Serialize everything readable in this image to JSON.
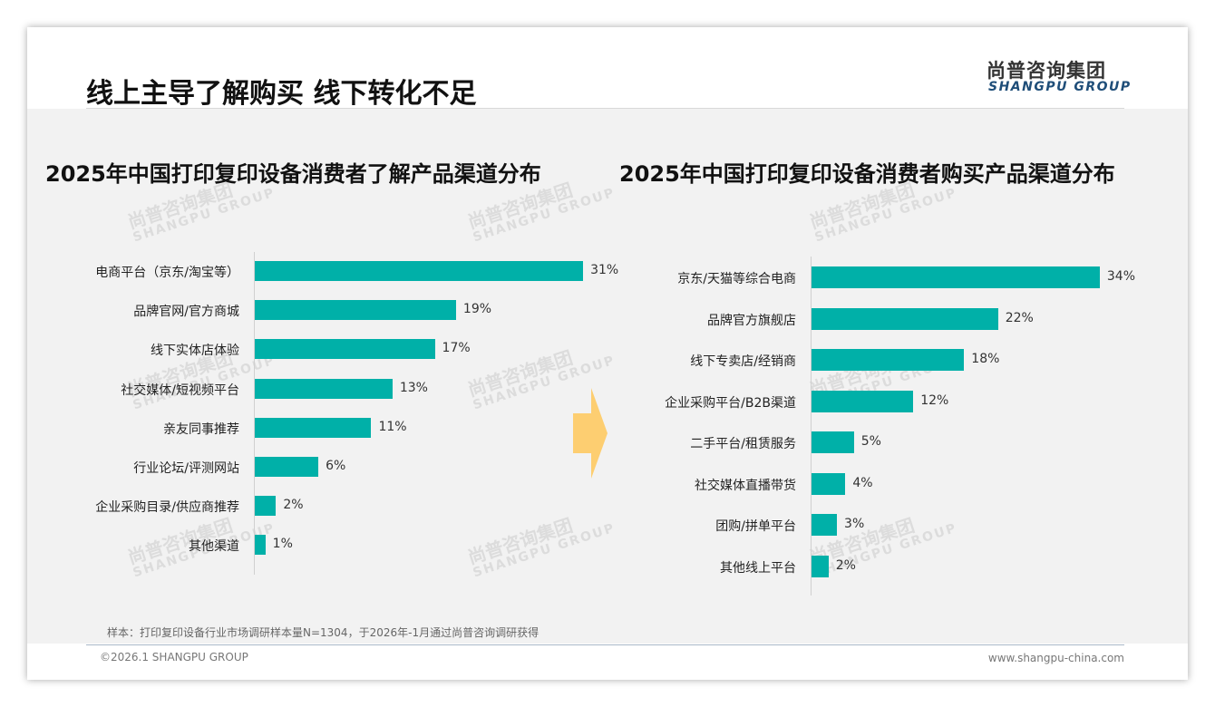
{
  "header": {
    "title": "线上主导了解购买 线下转化不足",
    "logo_cn": "尚普咨询集团",
    "logo_en": "SHANGPU GROUP"
  },
  "watermark": {
    "cn": "尚普咨询集团",
    "en": "SHANGPU GROUP"
  },
  "chart_data": [
    {
      "type": "bar",
      "orientation": "horizontal",
      "title": "2025年中国打印复印设备消费者了解产品渠道分布",
      "categories": [
        "电商平台（京东/淘宝等）",
        "品牌官网/官方商城",
        "线下实体店体验",
        "社交媒体/短视频平台",
        "亲友同事推荐",
        "行业论坛/评测网站",
        "企业采购目录/供应商推荐",
        "其他渠道"
      ],
      "values": [
        31,
        19,
        17,
        13,
        11,
        6,
        2,
        1
      ],
      "labels": [
        "31%",
        "19%",
        "17%",
        "13%",
        "11%",
        "6%",
        "2%",
        "1%"
      ],
      "unit": "%",
      "color": "#00b0a8"
    },
    {
      "type": "bar",
      "orientation": "horizontal",
      "title": "2025年中国打印复印设备消费者购买产品渠道分布",
      "categories": [
        "京东/天猫等综合电商",
        "品牌官方旗舰店",
        "线下专卖店/经销商",
        "企业采购平台/B2B渠道",
        "二手平台/租赁服务",
        "社交媒体直播带货",
        "团购/拼单平台",
        "其他线上平台"
      ],
      "values": [
        34,
        22,
        18,
        12,
        5,
        4,
        3,
        2
      ],
      "labels": [
        "34%",
        "22%",
        "18%",
        "12%",
        "5%",
        "4%",
        "3%",
        "2%"
      ],
      "unit": "%",
      "color": "#00b0a8"
    }
  ],
  "footer": {
    "note": "样本：打印复印设备行业市场调研样本量N=1304，于2026年-1月通过尚普咨询调研获得",
    "copyright": "©2026.1 SHANGPU GROUP",
    "url": "www.shangpu-china.com"
  }
}
